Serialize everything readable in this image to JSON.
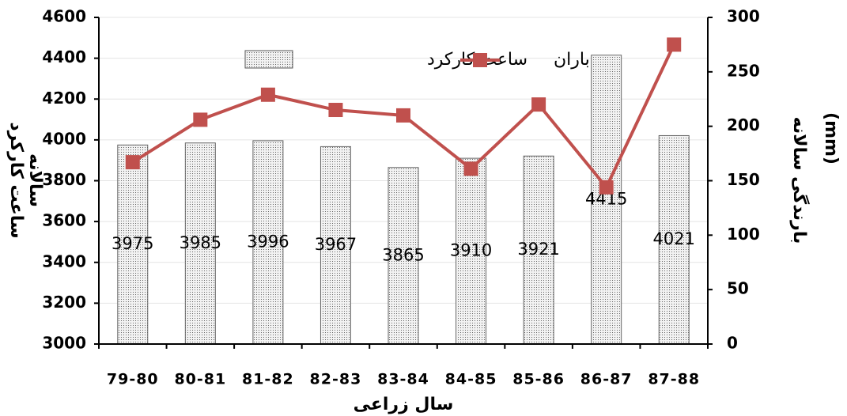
{
  "chart_data": {
    "type": "bar",
    "categories": [
      "79-80",
      "80-81",
      "81-82",
      "82-83",
      "83-84",
      "84-85",
      "85-86",
      "86-87",
      "87-88"
    ],
    "series": [
      {
        "name": "ساعت کارکرد",
        "type": "bar",
        "color": "#c8c8c8",
        "values": [
          3975,
          3985,
          3996,
          3967,
          3865,
          3910,
          3921,
          4415,
          4021
        ]
      },
      {
        "name": "باران",
        "type": "line",
        "axis": "y2",
        "color": "#c0504d",
        "values": [
          167,
          206,
          229,
          215,
          210,
          161,
          220,
          144,
          275
        ]
      }
    ],
    "ylim": [
      3000,
      4600
    ],
    "yticks": [
      3000,
      3200,
      3400,
      3600,
      3800,
      4000,
      4200,
      4400,
      4600
    ],
    "y2lim": [
      0,
      300
    ],
    "y2ticks": [
      0,
      50,
      100,
      150,
      200,
      250,
      300
    ],
    "xlabel": "سال زراعی",
    "ylabel": [
      "ساعت کارکرد",
      "سالانه"
    ],
    "y2label": [
      "بارندگی سالانه",
      "(mm)"
    ],
    "grid": true,
    "legend": "top",
    "data_labels": true
  }
}
